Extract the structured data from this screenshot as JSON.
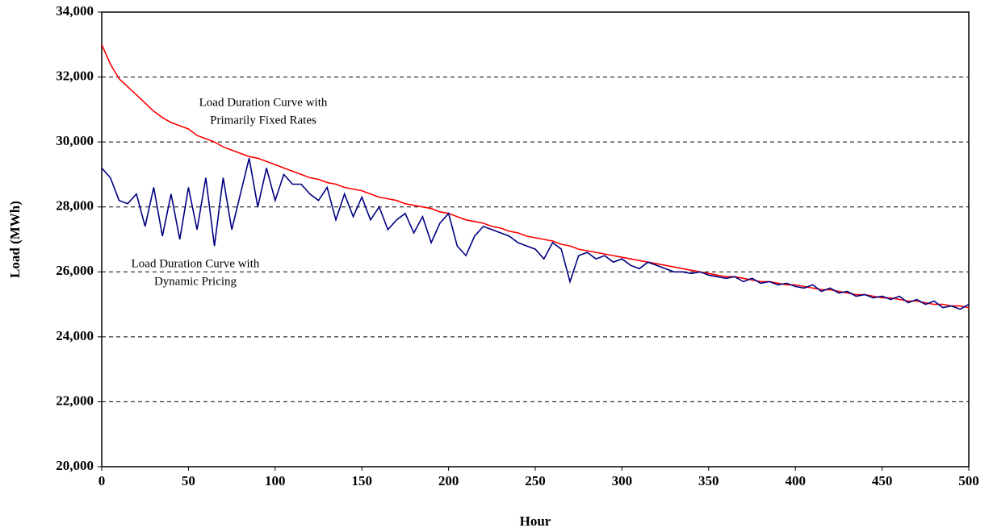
{
  "chart_data": {
    "type": "line",
    "x_label": "Hour",
    "y_label": "Load (MWh)",
    "annotations": [
      [
        "Load Duration Curve with",
        "Primarily Fixed Rates"
      ],
      [
        "Load Duration Curve with",
        "Dynamic Pricing"
      ]
    ],
    "x": [
      0,
      5,
      10,
      15,
      20,
      25,
      30,
      35,
      40,
      45,
      50,
      55,
      60,
      65,
      70,
      75,
      80,
      85,
      90,
      95,
      100,
      105,
      110,
      115,
      120,
      125,
      130,
      135,
      140,
      145,
      150,
      155,
      160,
      165,
      170,
      175,
      180,
      185,
      190,
      195,
      200,
      205,
      210,
      215,
      220,
      225,
      230,
      235,
      240,
      245,
      250,
      255,
      260,
      265,
      270,
      275,
      280,
      285,
      290,
      295,
      300,
      305,
      310,
      315,
      320,
      325,
      330,
      335,
      340,
      345,
      350,
      355,
      360,
      365,
      370,
      375,
      380,
      385,
      390,
      395,
      400,
      405,
      410,
      415,
      420,
      425,
      430,
      435,
      440,
      445,
      450,
      455,
      460,
      465,
      470,
      475,
      480,
      485,
      490,
      495,
      500
    ],
    "series": [
      {
        "color": "#ff0000",
        "values": [
          33000,
          32400,
          31950,
          31700,
          31450,
          31200,
          30950,
          30750,
          30600,
          30500,
          30400,
          30200,
          30100,
          30000,
          29850,
          29750,
          29650,
          29550,
          29500,
          29400,
          29300,
          29200,
          29100,
          29000,
          28900,
          28850,
          28750,
          28700,
          28600,
          28550,
          28500,
          28400,
          28300,
          28250,
          28200,
          28100,
          28050,
          28000,
          27950,
          27850,
          27800,
          27700,
          27600,
          27550,
          27500,
          27400,
          27350,
          27250,
          27200,
          27100,
          27050,
          27000,
          26950,
          26850,
          26800,
          26700,
          26650,
          26600,
          26550,
          26500,
          26450,
          26400,
          26350,
          26300,
          26250,
          26200,
          26150,
          26100,
          26050,
          26000,
          25950,
          25900,
          25850,
          25850,
          25800,
          25750,
          25700,
          25700,
          25650,
          25600,
          25600,
          25550,
          25500,
          25450,
          25450,
          25400,
          25350,
          25300,
          25300,
          25250,
          25200,
          25200,
          25150,
          25100,
          25100,
          25050,
          25000,
          25000,
          24950,
          24950,
          24900
        ]
      },
      {
        "color": "#000080",
        "values": [
          29200,
          28900,
          28200,
          28100,
          28400,
          27400,
          28600,
          27100,
          28400,
          27000,
          28600,
          27300,
          28900,
          26800,
          28900,
          27300,
          28400,
          29500,
          28000,
          29200,
          28200,
          29000,
          28700,
          28700,
          28400,
          28200,
          28600,
          27600,
          28400,
          27700,
          28300,
          27600,
          28000,
          27300,
          27600,
          27800,
          27200,
          27700,
          26900,
          27500,
          27800,
          26800,
          26500,
          27100,
          27400,
          27300,
          27200,
          27100,
          26900,
          26800,
          26700,
          26400,
          26900,
          26700,
          25700,
          26500,
          26600,
          26400,
          26500,
          26300,
          26400,
          26200,
          26100,
          26300,
          26200,
          26100,
          26000,
          26000,
          25950,
          26000,
          25900,
          25850,
          25800,
          25850,
          25700,
          25800,
          25650,
          25700,
          25600,
          25650,
          25550,
          25500,
          25600,
          25400,
          25500,
          25350,
          25400,
          25250,
          25300,
          25200,
          25250,
          25150,
          25250,
          25050,
          25150,
          25000,
          25100,
          24900,
          24950,
          24850,
          25000
        ]
      }
    ],
    "xlim": [
      0,
      500
    ],
    "xticks": [
      0,
      50,
      100,
      150,
      200,
      250,
      300,
      350,
      400,
      450,
      500
    ],
    "ylim": [
      20000,
      34000
    ],
    "yticks": [
      {
        "value": 20000,
        "label": "20,000"
      },
      {
        "value": 22000,
        "label": "22,000"
      },
      {
        "value": 24000,
        "label": "24,000"
      },
      {
        "value": 26000,
        "label": "26,000"
      },
      {
        "value": 28000,
        "label": "28,000"
      },
      {
        "value": 30000,
        "label": "30,000"
      },
      {
        "value": 32000,
        "label": "32,000"
      },
      {
        "value": 34000,
        "label": "34,000"
      }
    ],
    "grid": true
  }
}
